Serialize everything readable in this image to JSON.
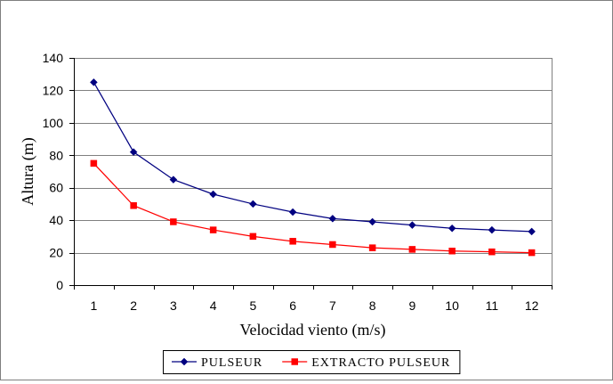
{
  "chart_data": {
    "type": "line",
    "title": "",
    "xlabel": "Velocidad viento (m/s)",
    "ylabel": "Altura (m)",
    "x": [
      1,
      2,
      3,
      4,
      5,
      6,
      7,
      8,
      9,
      10,
      11,
      12
    ],
    "x_tick_labels": [
      "1",
      "2",
      "3",
      "4",
      "5",
      "6",
      "7",
      "8",
      "9",
      "10",
      "11",
      "12"
    ],
    "ylim": [
      0,
      140
    ],
    "y_ticks": [
      0,
      20,
      40,
      60,
      80,
      100,
      120,
      140
    ],
    "y_tick_labels": [
      "0",
      "20",
      "40",
      "60",
      "80",
      "100",
      "120",
      "140"
    ],
    "grid": "horizontal",
    "legend_position": "bottom",
    "series": [
      {
        "name": "PULSEUR",
        "color": "#000080",
        "marker": "diamond",
        "values": [
          125,
          82,
          65,
          56,
          50,
          45,
          41,
          39,
          37,
          35,
          34,
          33
        ]
      },
      {
        "name": "EXTRACTO PULSEUR",
        "color": "#ff0000",
        "marker": "square",
        "values": [
          75,
          49,
          39,
          34,
          30,
          27,
          25,
          23,
          22,
          21,
          20.5,
          20
        ]
      }
    ]
  }
}
